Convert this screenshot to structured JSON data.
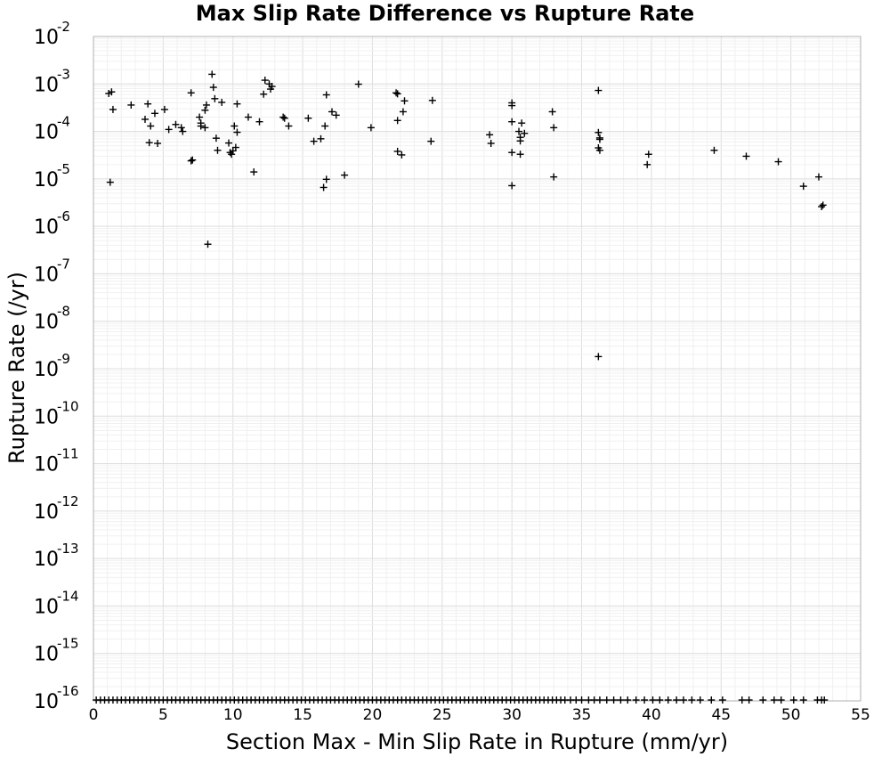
{
  "chart_data": {
    "type": "scatter",
    "title": "Max Slip Rate Difference vs Rupture Rate",
    "xlabel": "Section Max - Min Slip Rate in Rupture (mm/yr)",
    "ylabel": "Rupture Rate (/yr)",
    "xlim": [
      0,
      55
    ],
    "ylim": [
      1e-16,
      0.01
    ],
    "yscale": "log",
    "x_ticks": [
      "0",
      "5",
      "10",
      "15",
      "20",
      "25",
      "30",
      "35",
      "40",
      "45",
      "50",
      "55"
    ],
    "y_ticks": [
      {
        "base": "10",
        "exp": "-16"
      },
      {
        "base": "10",
        "exp": "-15"
      },
      {
        "base": "10",
        "exp": "-14"
      },
      {
        "base": "10",
        "exp": "-13"
      },
      {
        "base": "10",
        "exp": "-12"
      },
      {
        "base": "10",
        "exp": "-11"
      },
      {
        "base": "10",
        "exp": "-10"
      },
      {
        "base": "10",
        "exp": "-9"
      },
      {
        "base": "10",
        "exp": "-8"
      },
      {
        "base": "10",
        "exp": "-7"
      },
      {
        "base": "10",
        "exp": "-6"
      },
      {
        "base": "10",
        "exp": "-5"
      },
      {
        "base": "10",
        "exp": "-4"
      },
      {
        "base": "10",
        "exp": "-3"
      },
      {
        "base": "10",
        "exp": "-2"
      }
    ],
    "grid": true,
    "marker": "plus",
    "marker_color": "#000000",
    "points": [
      [
        1.1,
        0.00063
      ],
      [
        1.3,
        0.00068
      ],
      [
        1.4,
        0.00029
      ],
      [
        1.2,
        8.5e-06
      ],
      [
        2.7,
        0.00036
      ],
      [
        3.7,
        0.00018
      ],
      [
        3.9,
        0.00038
      ],
      [
        4.1,
        0.00013
      ],
      [
        4.0,
        5.8e-05
      ],
      [
        4.4,
        0.00024
      ],
      [
        4.6,
        5.6e-05
      ],
      [
        5.1,
        0.00029
      ],
      [
        5.4,
        0.00011
      ],
      [
        5.9,
        0.00014
      ],
      [
        6.3,
        0.00012
      ],
      [
        6.4,
        0.0001
      ],
      [
        7.0,
        0.00065
      ],
      [
        7.0,
        2.4e-05
      ],
      [
        7.1,
        2.5e-05
      ],
      [
        7.6,
        0.0002
      ],
      [
        7.7,
        0.00015
      ],
      [
        7.7,
        0.00013
      ],
      [
        8.0,
        0.00028
      ],
      [
        8.1,
        0.00036
      ],
      [
        8.0,
        0.00012
      ],
      [
        8.2,
        4.2e-07
      ],
      [
        8.5,
        0.0016
      ],
      [
        8.6,
        0.00085
      ],
      [
        8.7,
        0.00049
      ],
      [
        8.8,
        7.2e-05
      ],
      [
        8.9,
        4e-05
      ],
      [
        9.2,
        0.00041
      ],
      [
        9.7,
        5.7e-05
      ],
      [
        9.8,
        3.6e-05
      ],
      [
        9.9,
        3.3e-05
      ],
      [
        10.0,
        3.9e-05
      ],
      [
        10.1,
        0.00013
      ],
      [
        10.2,
        4.6e-05
      ],
      [
        10.3,
        9.6e-05
      ],
      [
        10.3,
        0.00038
      ],
      [
        11.1,
        0.0002
      ],
      [
        11.5,
        1.4e-05
      ],
      [
        11.9,
        0.00016
      ],
      [
        12.2,
        0.00061
      ],
      [
        12.3,
        0.0012
      ],
      [
        12.6,
        0.001
      ],
      [
        12.7,
        0.00078
      ],
      [
        12.8,
        0.00089
      ],
      [
        13.6,
        0.0002
      ],
      [
        13.7,
        0.00019
      ],
      [
        14.0,
        0.00013
      ],
      [
        15.4,
        0.00019
      ],
      [
        15.8,
        6.2e-05
      ],
      [
        16.3,
        7e-05
      ],
      [
        16.5,
        6.6e-06
      ],
      [
        16.6,
        0.00013
      ],
      [
        16.7,
        9.8e-06
      ],
      [
        16.7,
        0.00059
      ],
      [
        17.1,
        0.00026
      ],
      [
        17.4,
        0.00022
      ],
      [
        18.0,
        1.2e-05
      ],
      [
        19.0,
        0.00099
      ],
      [
        19.9,
        0.00012
      ],
      [
        21.7,
        0.00065
      ],
      [
        21.8,
        0.00062
      ],
      [
        21.8,
        0.00017
      ],
      [
        21.8,
        3.8e-05
      ],
      [
        22.1,
        3.2e-05
      ],
      [
        22.2,
        0.00026
      ],
      [
        22.3,
        0.00044
      ],
      [
        24.2,
        6.2e-05
      ],
      [
        24.3,
        0.00045
      ],
      [
        28.4,
        8.5e-05
      ],
      [
        28.5,
        5.6e-05
      ],
      [
        30.0,
        0.0004
      ],
      [
        30.0,
        0.00035
      ],
      [
        30.0,
        0.00016
      ],
      [
        30.0,
        3.6e-05
      ],
      [
        30.0,
        7.2e-06
      ],
      [
        30.5,
        0.0001
      ],
      [
        30.6,
        7.5e-05
      ],
      [
        30.6,
        6.3e-05
      ],
      [
        30.6,
        3.3e-05
      ],
      [
        30.7,
        0.00015
      ],
      [
        30.9,
        9.1e-05
      ],
      [
        32.9,
        0.00026
      ],
      [
        33.0,
        0.00012
      ],
      [
        33.0,
        1.1e-05
      ],
      [
        36.2,
        0.00073
      ],
      [
        36.2,
        9.5e-05
      ],
      [
        36.3,
        7.3e-05
      ],
      [
        36.3,
        6.8e-05
      ],
      [
        36.2,
        4.5e-05
      ],
      [
        36.3,
        4e-05
      ],
      [
        36.2,
        1.8e-09
      ],
      [
        39.8,
        3.3e-05
      ],
      [
        39.7,
        2e-05
      ],
      [
        44.5,
        4e-05
      ],
      [
        46.8,
        3e-05
      ],
      [
        49.1,
        2.3e-05
      ],
      [
        50.9,
        7e-06
      ],
      [
        52.0,
        1.1e-05
      ],
      [
        52.3,
        2.8e-06
      ],
      [
        52.2,
        2.6e-06
      ]
    ],
    "floor_value": 1e-16,
    "floor_points_x": [
      0.2,
      0.5,
      0.8,
      1.1,
      1.4,
      1.7,
      2.0,
      2.3,
      2.6,
      2.9,
      3.2,
      3.5,
      3.8,
      4.1,
      4.4,
      4.7,
      5.0,
      5.3,
      5.6,
      5.9,
      6.2,
      6.5,
      6.8,
      7.1,
      7.4,
      7.7,
      8.0,
      8.3,
      8.6,
      8.9,
      9.2,
      9.5,
      9.8,
      10.1,
      10.4,
      10.7,
      11.0,
      11.3,
      11.6,
      11.9,
      12.2,
      12.5,
      12.8,
      13.1,
      13.4,
      13.7,
      14.0,
      14.3,
      14.6,
      14.9,
      15.2,
      15.5,
      15.8,
      16.1,
      16.4,
      16.7,
      17.0,
      17.3,
      17.6,
      17.9,
      18.2,
      18.5,
      18.8,
      19.1,
      19.4,
      19.7,
      20.0,
      20.3,
      20.6,
      20.9,
      21.2,
      21.5,
      21.8,
      22.1,
      22.4,
      22.7,
      23.0,
      23.3,
      23.6,
      23.9,
      24.2,
      24.5,
      24.8,
      25.1,
      25.4,
      25.7,
      26.0,
      26.3,
      26.6,
      26.9,
      27.2,
      27.5,
      27.8,
      28.1,
      28.4,
      28.7,
      29.0,
      29.3,
      29.6,
      29.9,
      30.2,
      30.5,
      30.8,
      31.1,
      31.4,
      31.7,
      32.0,
      32.3,
      32.6,
      32.9,
      33.2,
      33.5,
      33.8,
      34.2,
      34.6,
      35.0,
      35.5,
      35.9,
      36.3,
      36.8,
      37.3,
      37.8,
      38.3,
      38.9,
      39.5,
      40.1,
      40.6,
      41.2,
      41.8,
      42.3,
      42.9,
      43.5,
      44.3,
      45.1,
      46.5,
      47.0,
      48.0,
      48.8,
      49.3,
      50.2,
      50.9,
      51.9,
      52.2,
      52.4
    ]
  }
}
